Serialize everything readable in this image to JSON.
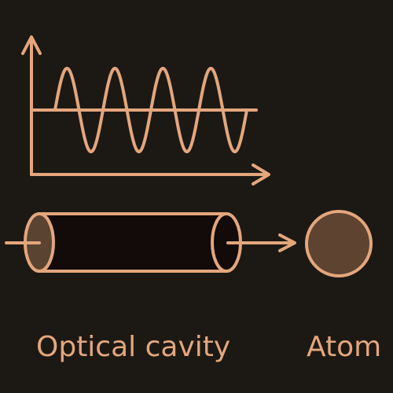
{
  "labels": {
    "cavity": "Optical cavity",
    "atom": "Atom"
  },
  "icons": {
    "plot": "wave-plot-icon",
    "cavity": "optical-cavity-icon",
    "atom": "atom-circle-icon"
  },
  "colors": {
    "background": "#1c1915",
    "stroke": "#e4a67d",
    "cavity_interior": "#120b09",
    "cavity_end": "#5a4331",
    "atom_fill": "#5d4330"
  },
  "wave": {
    "cycles": 4
  }
}
